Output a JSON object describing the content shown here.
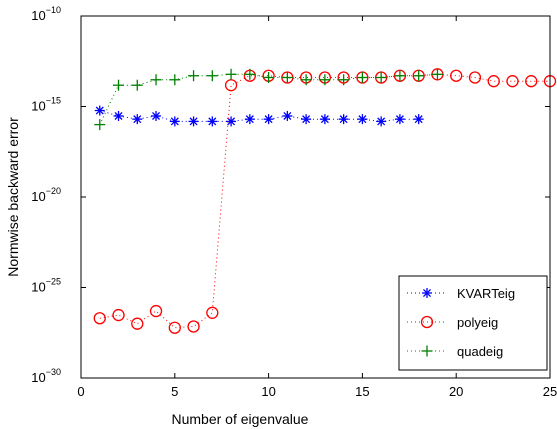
{
  "chart_data": {
    "type": "scatter",
    "xlabel": "Number of eigenvalue",
    "ylabel": "Normwise backward error",
    "xlim": [
      0,
      25
    ],
    "ylim": [
      1e-30,
      1e-10
    ],
    "yscale": "log",
    "x_ticks": [
      "0",
      "5",
      "10",
      "15",
      "20",
      "25"
    ],
    "y_ticks": [
      {
        "base": "10",
        "exp": "−30"
      },
      {
        "base": "10",
        "exp": "−25"
      },
      {
        "base": "10",
        "exp": "−20"
      },
      {
        "base": "10",
        "exp": "−15"
      },
      {
        "base": "10",
        "exp": "−10"
      }
    ],
    "grid": false,
    "legend_position": "bottom-right",
    "series": [
      {
        "name": "KVARTeig",
        "marker": "asterisk",
        "color": "#0000ff",
        "x": [
          1,
          2,
          3,
          4,
          5,
          6,
          7,
          8,
          9,
          10,
          11,
          12,
          13,
          14,
          15,
          16,
          17,
          18
        ],
        "y": [
          6e-16,
          3e-16,
          2e-16,
          3e-16,
          1.5e-16,
          1.5e-16,
          1.5e-16,
          1.5e-16,
          2e-16,
          2e-16,
          3e-16,
          2e-16,
          2e-16,
          2e-16,
          2e-16,
          1.5e-16,
          2e-16,
          2e-16
        ]
      },
      {
        "name": "polyeig",
        "marker": "circle",
        "color": "#ff0000",
        "x": [
          1,
          2,
          3,
          4,
          5,
          6,
          7,
          8,
          9,
          10,
          11,
          12,
          13,
          14,
          15,
          16,
          17,
          18,
          19,
          20,
          21,
          22,
          23,
          24,
          25
        ],
        "y": [
          2e-27,
          3e-27,
          1e-27,
          5e-27,
          6e-28,
          7e-28,
          4e-27,
          1.5e-14,
          5e-14,
          5e-14,
          4e-14,
          4e-14,
          4e-14,
          4e-14,
          4e-14,
          4e-14,
          5e-14,
          5e-14,
          6e-14,
          5e-14,
          4e-14,
          2.5e-14,
          2.5e-14,
          2.5e-14,
          2.5e-14
        ]
      },
      {
        "name": "quadeig",
        "marker": "plus",
        "color": "#008000",
        "x": [
          1,
          2,
          3,
          4,
          5,
          6,
          7,
          8,
          9,
          10,
          11,
          12,
          13,
          14,
          15,
          16,
          17,
          18,
          19
        ],
        "y": [
          1e-16,
          1.5e-14,
          1.5e-14,
          3e-14,
          3e-14,
          5e-14,
          5e-14,
          6e-14,
          6e-14,
          4e-14,
          4e-14,
          3e-14,
          3e-14,
          3e-14,
          4e-14,
          4e-14,
          5e-14,
          5e-14,
          6e-14
        ]
      }
    ]
  }
}
